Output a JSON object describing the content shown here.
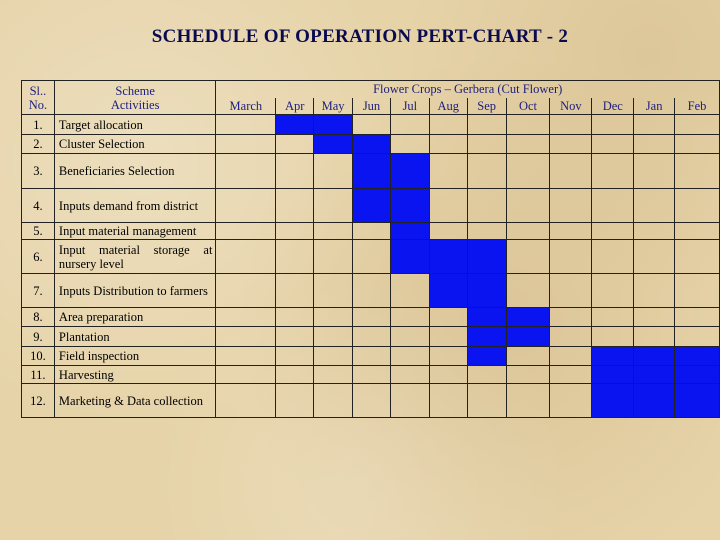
{
  "title": "SCHEDULE OF OPERATION PERT-CHART - 2",
  "table": {
    "sl_header": [
      "Sl..",
      "No."
    ],
    "activities_header": [
      "Scheme",
      "Activities"
    ],
    "crop_header": "Flower Crops – Gerbera (Cut Flower)",
    "months": [
      "March",
      "Apr",
      "May",
      "Jun",
      "Jul",
      "Aug",
      "Sep",
      "Oct",
      "Nov",
      "Dec",
      "Jan",
      "Feb"
    ],
    "fill_color": "#0a14f0",
    "rows": [
      {
        "no": "1.",
        "activity": "Target allocation",
        "filled": [
          1,
          2
        ]
      },
      {
        "no": "2.",
        "activity": "Cluster Selection",
        "filled": [
          2,
          3
        ]
      },
      {
        "no": "3.",
        "activity": "Beneficiaries Selection",
        "filled": [
          3,
          4
        ]
      },
      {
        "no": "4.",
        "activity": "Inputs demand from district",
        "filled": [
          3,
          4
        ]
      },
      {
        "no": "5.",
        "activity": "Input material management",
        "filled": [
          4
        ]
      },
      {
        "no": "6.",
        "activity": "Input material storage at nursery level",
        "filled": [
          4,
          5,
          6
        ]
      },
      {
        "no": "7.",
        "activity": "Inputs Distribution to farmers",
        "filled": [
          5,
          6
        ]
      },
      {
        "no": "8.",
        "activity": "Area preparation",
        "filled": [
          6,
          7
        ]
      },
      {
        "no": "9.",
        "activity": "Plantation",
        "filled": [
          6,
          7
        ]
      },
      {
        "no": "10.",
        "activity": "Field inspection",
        "filled": [
          6,
          9,
          10,
          11
        ]
      },
      {
        "no": "11.",
        "activity": "Harvesting",
        "filled": [
          9,
          10,
          11
        ]
      },
      {
        "no": "12.",
        "activity": "Marketing & Data collection",
        "filled": [
          9,
          10,
          11
        ]
      }
    ]
  }
}
